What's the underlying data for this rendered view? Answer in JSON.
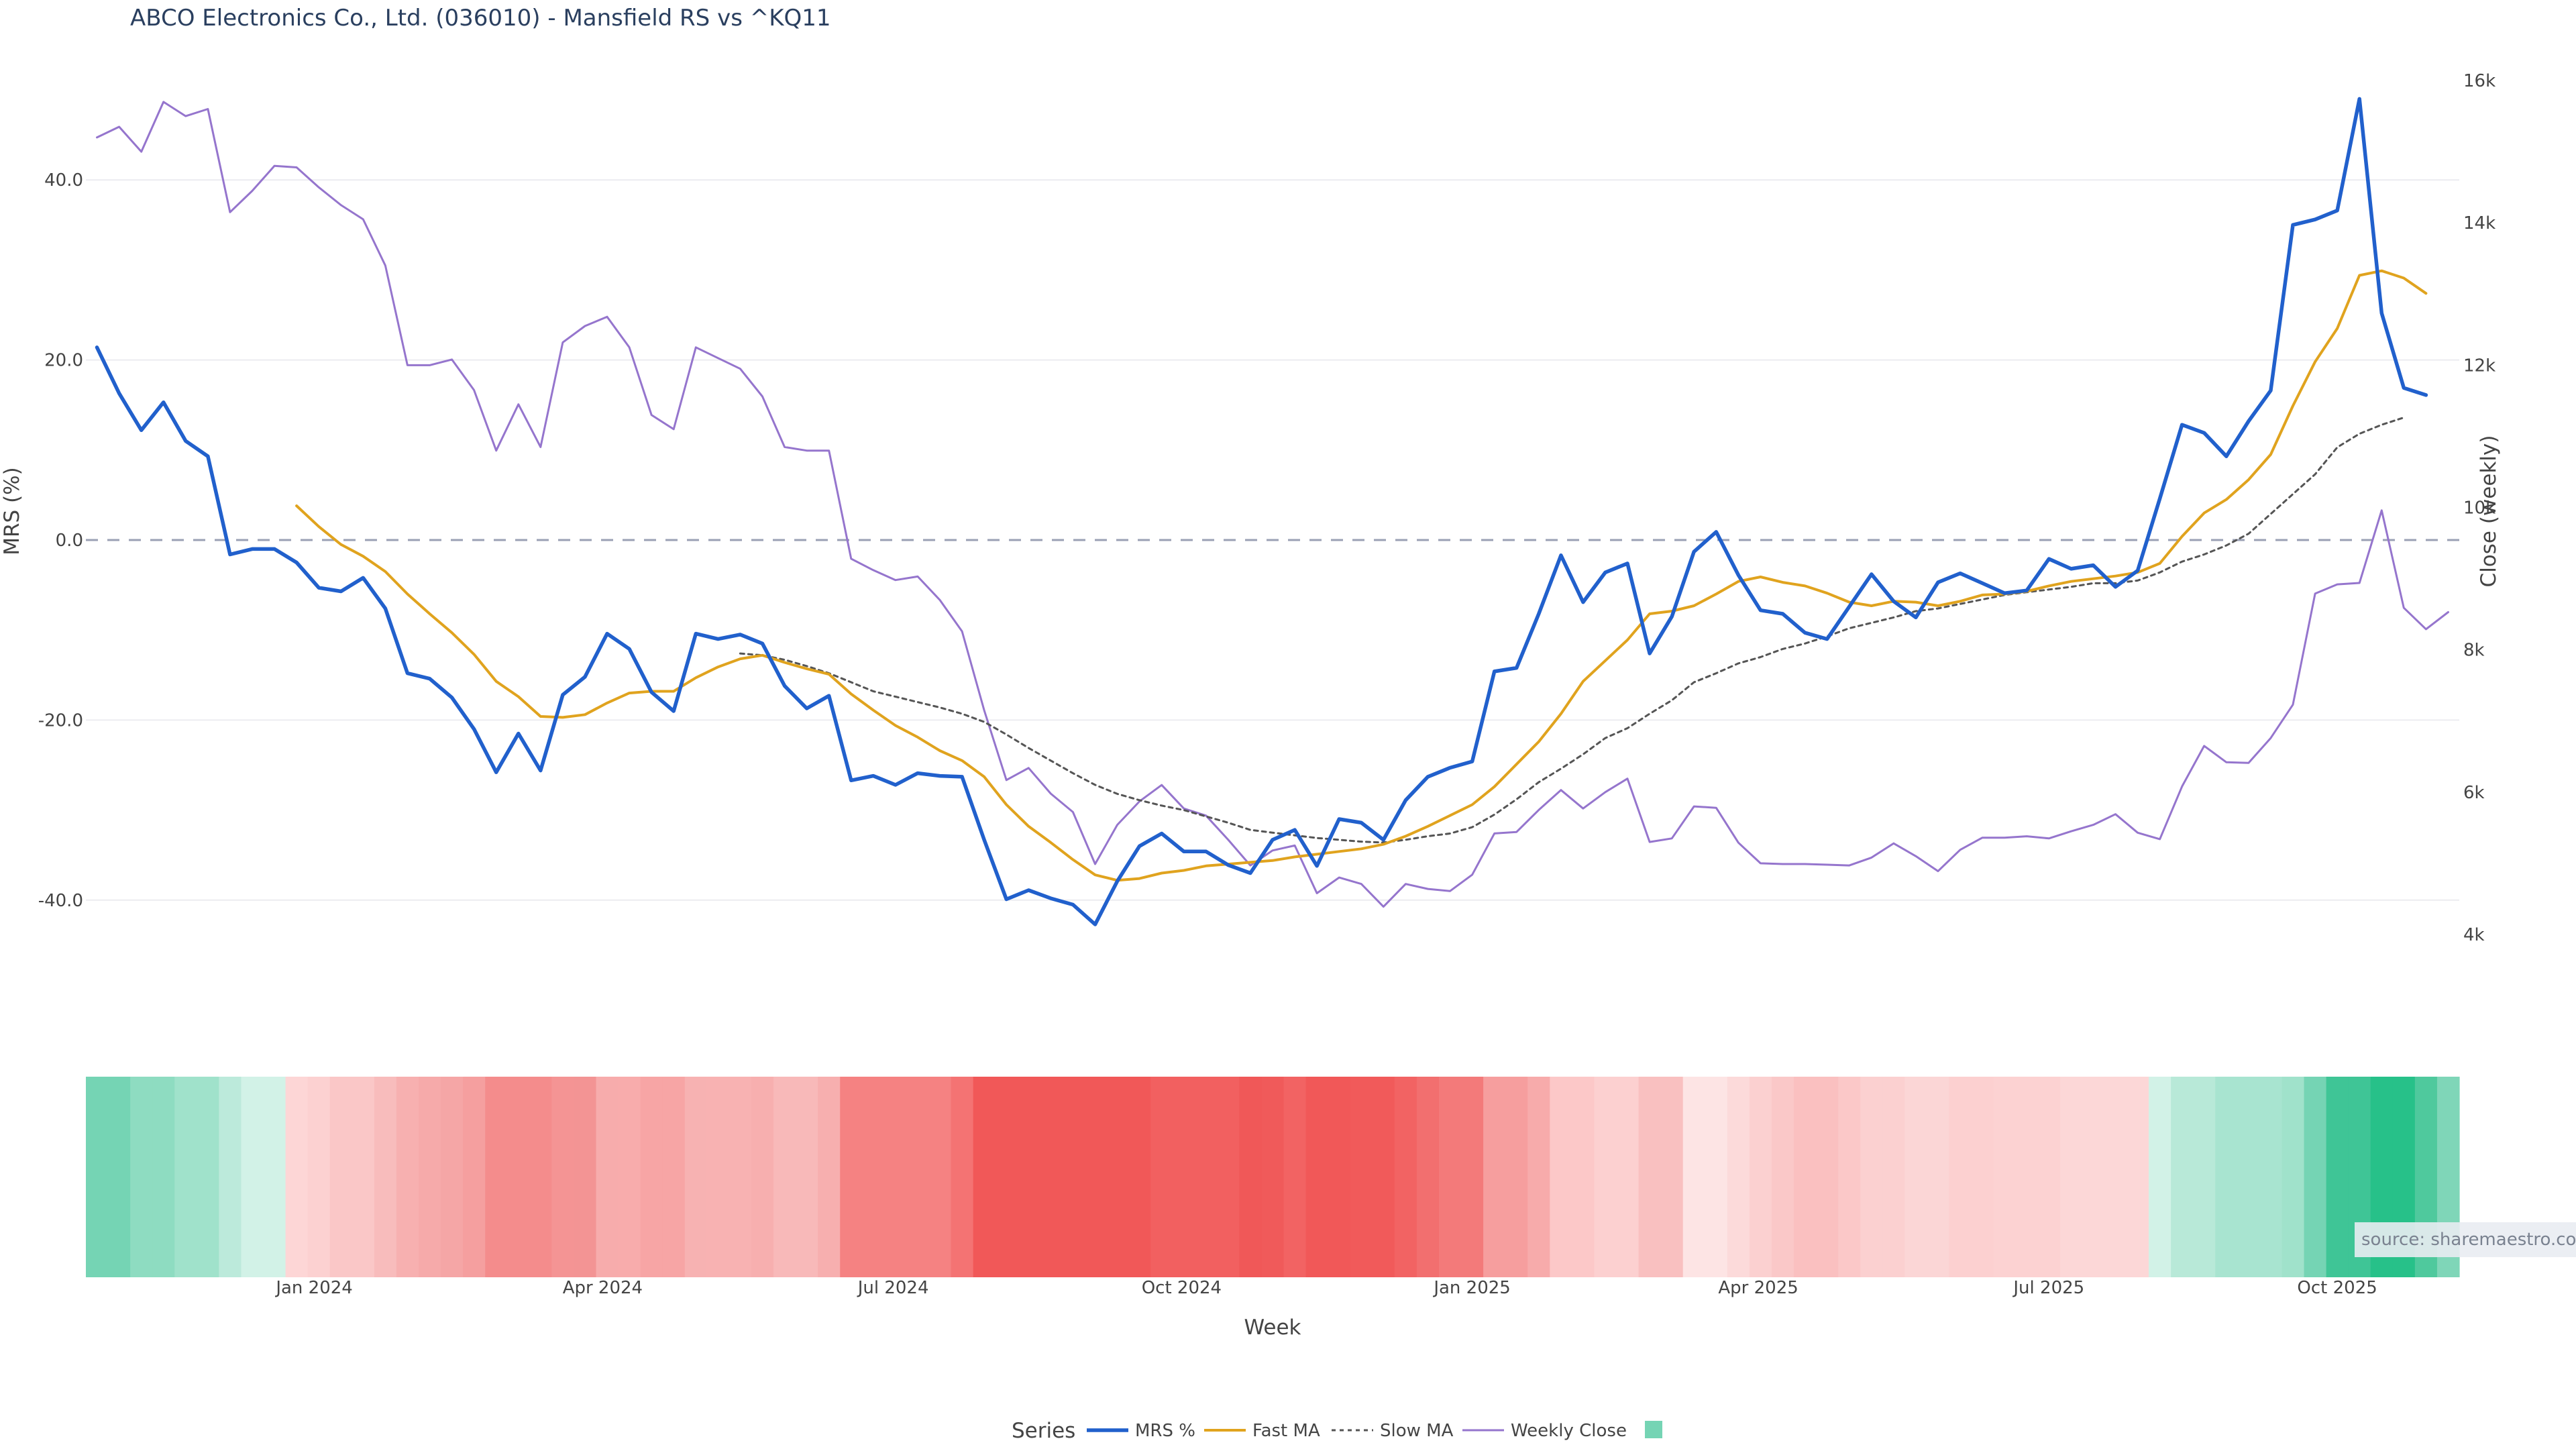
{
  "chart_data": {
    "type": "line",
    "title": "ABCO Electronics Co., Ltd. (036010) - Mansfield RS vs ^KQ11",
    "xlabel": "Week",
    "ylabel_left": "MRS (%)",
    "ylabel_right": "Close (weekly)",
    "ylim_left": [
      -50,
      52
    ],
    "ylim_right": [
      3000,
      16500
    ],
    "left_ticks": [
      "40.0",
      "20.0",
      "0.0",
      "-20.0",
      "-40.0"
    ],
    "left_tick_values": [
      40,
      20,
      0,
      -20,
      -40
    ],
    "right_ticks": [
      "16k",
      "14k",
      "12k",
      "10k",
      "8k",
      "6k",
      "4k"
    ],
    "right_tick_values": [
      16000,
      14000,
      12000,
      10000,
      8000,
      6000,
      4000
    ],
    "x_tick_labels": [
      "Jan 2024",
      "Apr 2024",
      "Jul 2024",
      "Oct 2024",
      "Jan 2025",
      "Apr 2025",
      "Jul 2025",
      "Oct 2025"
    ],
    "x_tick_index": [
      9.8,
      22.8,
      35.9,
      48.9,
      62.0,
      74.9,
      88.0,
      101.0
    ],
    "weeks": 107,
    "series": [
      {
        "name": "MRS %",
        "color": "#2160cc",
        "width": 5.5,
        "dash": "",
        "values": [
          21.4,
          16.3,
          12.2,
          15.3,
          11,
          9.3,
          -1.6,
          -1,
          -1,
          -2.5,
          -5.3,
          -5.7,
          -4.2,
          -7.6,
          -14.8,
          -15.4,
          -17.5,
          -21,
          -25.8,
          -21.5,
          -25.6,
          -17.2,
          -15.2,
          -10.4,
          -12.1,
          -16.9,
          -19,
          -10.4,
          -11,
          -10.5,
          -11.5,
          -16.2,
          -18.7,
          -17.3,
          -26.7,
          -26.2,
          -27.2,
          -25.9,
          -26.2,
          -26.3,
          -33.3,
          -39.9,
          -38.9,
          -39.8,
          -40.5,
          -42.7,
          -37.9,
          -34,
          -32.6,
          -34.6,
          -34.6,
          -36.1,
          -37,
          -33.3,
          -32.2,
          -36.2,
          -31,
          -31.4,
          -33.3,
          -28.9,
          -26.3,
          -25.3,
          -24.6,
          -14.6,
          -14.2,
          -8.2,
          -1.7,
          -6.9,
          -3.6,
          -2.6,
          -12.6,
          -8.5,
          -1.3,
          0.9,
          -3.9,
          -7.8,
          -8.2,
          -10.3,
          -11,
          -7.4,
          -3.8,
          -6.8,
          -8.6,
          -4.7,
          -3.7,
          -4.8,
          -5.9,
          -5.6,
          -2.1,
          -3.2,
          -2.8,
          -5.2,
          -3.4,
          4.6,
          12.8,
          11.9,
          9.3,
          13.2,
          16.6,
          35,
          35.6,
          36.6,
          49,
          25.2,
          16.9,
          16.1
        ]
      },
      {
        "name": "Fast MA",
        "color": "#e0a31e",
        "width": 4,
        "dash": "",
        "values": [
          null,
          null,
          null,
          null,
          null,
          null,
          null,
          null,
          null,
          3.8,
          1.5,
          -0.5,
          -1.8,
          -3.5,
          -6.0,
          -8.2,
          -10.3,
          -12.7,
          -15.7,
          -17.4,
          -19.6,
          -19.7,
          -19.4,
          -18.1,
          -17.0,
          -16.8,
          -16.8,
          -15.3,
          -14.1,
          -13.2,
          -12.8,
          -13.6,
          -14.3,
          -14.9,
          -17.1,
          -18.9,
          -20.6,
          -21.9,
          -23.4,
          -24.5,
          -26.3,
          -29.4,
          -31.8,
          -33.6,
          -35.5,
          -37.2,
          -37.8,
          -37.6,
          -37.0,
          -36.7,
          -36.2,
          -36.0,
          -35.8,
          -35.6,
          -35.2,
          -34.9,
          -34.6,
          -34.3,
          -33.8,
          -32.9,
          -31.8,
          -30.6,
          -29.4,
          -27.4,
          -24.9,
          -22.4,
          -19.3,
          -15.7,
          -13.4,
          -11.1,
          -8.2,
          -7.9,
          -7.3,
          -6.0,
          -4.6,
          -4.1,
          -4.7,
          -5.1,
          -5.9,
          -6.9,
          -7.3,
          -6.8,
          -6.9,
          -7.3,
          -6.8,
          -6.1,
          -6.0,
          -5.7,
          -5.1,
          -4.6,
          -4.3,
          -4.0,
          -3.6,
          -2.6,
          0.4,
          3.0,
          4.5,
          6.7,
          9.5,
          14.9,
          19.8,
          23.5,
          29.4,
          29.9,
          29.1,
          27.4
        ]
      },
      {
        "name": "Slow MA",
        "color": "#555555",
        "width": 3,
        "dash": "6,6",
        "values": [
          null,
          null,
          null,
          null,
          null,
          null,
          null,
          null,
          null,
          null,
          null,
          null,
          null,
          null,
          null,
          null,
          null,
          null,
          null,
          null,
          null,
          null,
          null,
          null,
          null,
          null,
          null,
          null,
          null,
          -12.6,
          -12.8,
          -13.3,
          -14.0,
          -14.8,
          -15.8,
          -16.8,
          -17.4,
          -18.0,
          -18.6,
          -19.3,
          -20.2,
          -21.6,
          -23.1,
          -24.5,
          -25.9,
          -27.2,
          -28.2,
          -28.9,
          -29.5,
          -30.0,
          -30.7,
          -31.4,
          -32.2,
          -32.5,
          -32.8,
          -33.1,
          -33.3,
          -33.5,
          -33.6,
          -33.3,
          -32.9,
          -32.6,
          -31.9,
          -30.5,
          -28.8,
          -26.9,
          -25.4,
          -23.8,
          -22.0,
          -20.9,
          -19.3,
          -17.8,
          -15.8,
          -14.8,
          -13.7,
          -13.0,
          -12.1,
          -11.5,
          -10.7,
          -9.8,
          -9.2,
          -8.6,
          -7.9,
          -7.6,
          -7.1,
          -6.6,
          -6.1,
          -5.8,
          -5.5,
          -5.2,
          -4.8,
          -4.8,
          -4.5,
          -3.6,
          -2.4,
          -1.6,
          -0.6,
          0.7,
          2.9,
          5.1,
          7.3,
          10.3,
          11.8,
          12.8,
          13.6
        ]
      },
      {
        "name": "Weekly Close",
        "color": "#9575cd",
        "width": 3,
        "dash": "",
        "axis": "right",
        "values": [
          15200,
          15350,
          15000,
          15700,
          15500,
          15600,
          14150,
          14450,
          14800,
          14780,
          14500,
          14250,
          14050,
          13400,
          12000,
          12000,
          12080,
          11650,
          10800,
          11450,
          10850,
          12320,
          12550,
          12680,
          12250,
          11300,
          11100,
          12250,
          12100,
          11950,
          11560,
          10850,
          10800,
          10800,
          9280,
          9120,
          8980,
          9030,
          8700,
          8260,
          7150,
          6170,
          6340,
          5980,
          5720,
          4990,
          5540,
          5870,
          6100,
          5770,
          5670,
          5330,
          4970,
          5180,
          5250,
          4580,
          4800,
          4710,
          4390,
          4710,
          4640,
          4610,
          4840,
          5420,
          5440,
          5750,
          6030,
          5770,
          6000,
          6190,
          5300,
          5350,
          5800,
          5780,
          5290,
          5000,
          4990,
          4990,
          4980,
          4970,
          5080,
          5280,
          5100,
          4890,
          5190,
          5360,
          5360,
          5380,
          5350,
          5450,
          5540,
          5690,
          5430,
          5340,
          6080,
          6650,
          6420,
          6410,
          6760,
          7230,
          8790,
          8920,
          8940,
          9960,
          8590,
          8290,
          8530
        ]
      }
    ],
    "heatmap_colors": [
      "#75d4b4",
      "#75d4b4",
      "#8edcc1",
      "#8edcc1",
      "#a0e2cb",
      "#a0e2cb",
      "#bceadb",
      "#d2f2e7",
      "#d2f2e7",
      "#fdd6d6",
      "#fcd1d1",
      "#fac7c7",
      "#fac7c7",
      "#f8bcbc",
      "#f7b0b0",
      "#f6aaaa",
      "#f5a6a6",
      "#f59f9f",
      "#f48c8c",
      "#f48c8c",
      "#f48c8c",
      "#f49494",
      "#f39494",
      "#f7acac",
      "#f8acac",
      "#f7a5a5",
      "#f7a5a5",
      "#f7b2b2",
      "#f8b2b2",
      "#f8b2b2",
      "#f7afaf",
      "#f8b9b9",
      "#f8b9b9",
      "#f7afaf",
      "#f58282",
      "#f58282",
      "#f58282",
      "#f58282",
      "#f58282",
      "#f47373",
      "#f15858",
      "#f15858",
      "#f15858",
      "#f15858",
      "#f15858",
      "#f15858",
      "#f15858",
      "#f15858",
      "#f26060",
      "#f26060",
      "#f26060",
      "#f26060",
      "#f05858",
      "#f05a5a",
      "#f26363",
      "#f15858",
      "#f15858",
      "#f15a5a",
      "#f15a5a",
      "#f26363",
      "#f26f6f",
      "#f37a7a",
      "#f37a7a",
      "#f69e9e",
      "#f69e9e",
      "#f7abab",
      "#fcc8c8",
      "#fcc8c8",
      "#fcd0d0",
      "#fcd0d0",
      "#f9c0c0",
      "#f9c0c0",
      "#fde4e4",
      "#fde4e4",
      "#fcdada",
      "#fbd0d0",
      "#fac8c8",
      "#fac0c0",
      "#fac0c0",
      "#fbc8c8",
      "#fbd0d0",
      "#fbd0d0",
      "#fbd6d6",
      "#fbd6d6",
      "#fcd0d0",
      "#fcd0d0",
      "#fcd2d2",
      "#fcd2d2",
      "#fcd2d2",
      "#fcd7d7",
      "#fcd7d7",
      "#fcd7d7",
      "#fcd7d7",
      "#d2f2e7",
      "#b8e9d8",
      "#b8e9d8",
      "#a8e4d0",
      "#a8e4d0",
      "#a8e4d0",
      "#a0e2cb",
      "#75d4b4",
      "#3fc596",
      "#3fc596",
      "#27c189",
      "#27c189",
      "#4fc99d",
      "#7fd6b8"
    ],
    "legend": {
      "title": "Series",
      "items": [
        "MRS %",
        "Fast MA",
        "Slow MA",
        "Weekly Close",
        ""
      ],
      "placement": "bottom-center"
    },
    "heatmap_legend_color": "#75d4b4",
    "zero_line": true,
    "grid": true,
    "source": "source: sharemaestro.com"
  }
}
